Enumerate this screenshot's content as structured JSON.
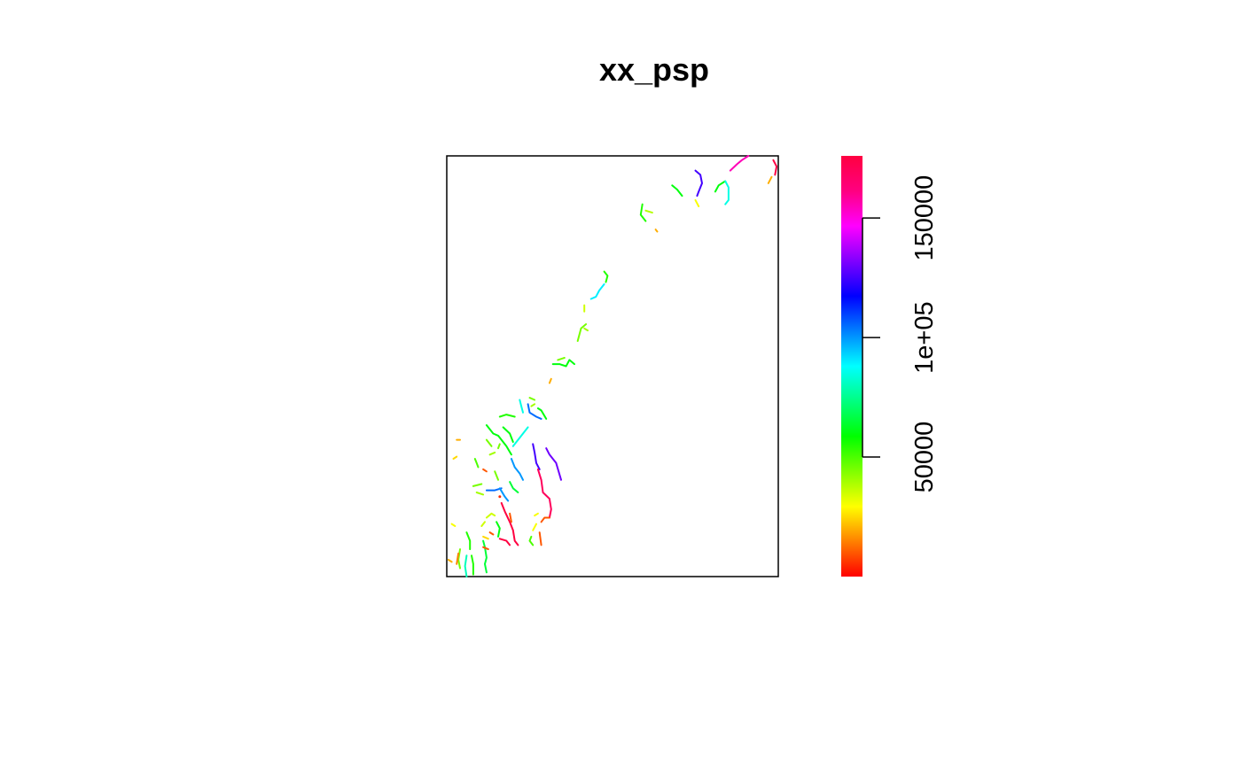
{
  "chart_data": {
    "type": "line",
    "title": "xx_psp",
    "xlabel": "",
    "ylabel": "",
    "axes_shown": false,
    "colorbar": {
      "orientation": "vertical",
      "placement": "right",
      "range": [
        0,
        176000
      ],
      "palette": [
        "#ff0000",
        "#ff8000",
        "#ffff00",
        "#80ff00",
        "#00ff00",
        "#00ff80",
        "#00ffff",
        "#0080ff",
        "#0000ff",
        "#8000ff",
        "#ff00ff",
        "#ff0080",
        "#ff0040"
      ],
      "ticks": [
        {
          "value": 50000,
          "label": "50000"
        },
        {
          "value": 100000,
          "label": "1e+05"
        },
        {
          "value": 150000,
          "label": "150000"
        }
      ]
    },
    "window": {
      "xlim": [
        0,
        100
      ],
      "ylim": [
        0,
        100
      ]
    },
    "segments_note": "",
    "segments": [
      {
        "value": 155000,
        "points": [
          [
            85.5,
            96.5
          ],
          [
            87.5,
            98
          ],
          [
            89,
            99
          ],
          [
            91,
            100
          ]
        ]
      },
      {
        "value": 175000,
        "points": [
          [
            98.5,
            99
          ],
          [
            99.5,
            97.5
          ],
          [
            99,
            95.5
          ]
        ]
      },
      {
        "value": 20000,
        "points": [
          [
            97,
            93.5
          ],
          [
            98,
            95
          ]
        ]
      },
      {
        "value": 125000,
        "points": [
          [
            75,
            96.5
          ],
          [
            76.5,
            95.5
          ],
          [
            77,
            93.5
          ],
          [
            76,
            91.5
          ],
          [
            75.5,
            90.5
          ]
        ]
      },
      {
        "value": 60000,
        "points": [
          [
            81,
            91.5
          ],
          [
            82,
            93
          ],
          [
            84,
            94
          ]
        ]
      },
      {
        "value": 85000,
        "points": [
          [
            84,
            94
          ],
          [
            85,
            92.5
          ],
          [
            85,
            89.5
          ],
          [
            84,
            88.5
          ]
        ]
      },
      {
        "value": 60000,
        "points": [
          [
            68,
            93
          ],
          [
            69.5,
            92
          ],
          [
            71,
            90.5
          ]
        ]
      },
      {
        "value": 30000,
        "points": [
          [
            75,
            89.5
          ],
          [
            76,
            88
          ]
        ]
      },
      {
        "value": 55000,
        "points": [
          [
            59,
            88.5
          ],
          [
            58.5,
            86
          ],
          [
            60,
            84.5
          ]
        ]
      },
      {
        "value": 38000,
        "points": [
          [
            60,
            87
          ],
          [
            62,
            86.5
          ]
        ]
      },
      {
        "value": 20000,
        "points": [
          [
            63,
            82.5
          ],
          [
            63.5,
            82
          ]
        ]
      },
      {
        "value": 55000,
        "points": [
          [
            48,
            70
          ],
          [
            48.5,
            71.5
          ],
          [
            47.5,
            72.5
          ]
        ]
      },
      {
        "value": 90000,
        "points": [
          [
            43.5,
            66
          ],
          [
            45,
            66.5
          ],
          [
            46,
            68
          ],
          [
            47.5,
            69.5
          ]
        ]
      },
      {
        "value": 35000,
        "points": [
          [
            41.5,
            63
          ],
          [
            41.5,
            64.5
          ]
        ]
      },
      {
        "value": 45000,
        "points": [
          [
            39.5,
            56
          ],
          [
            40.5,
            59
          ],
          [
            42,
            60
          ]
        ]
      },
      {
        "value": 40000,
        "points": [
          [
            41.5,
            59
          ],
          [
            42.5,
            58.5
          ]
        ]
      },
      {
        "value": 60000,
        "points": [
          [
            32,
            50.5
          ],
          [
            34,
            50.5
          ],
          [
            36,
            50
          ],
          [
            37,
            51.5
          ],
          [
            38.5,
            50.5
          ]
        ]
      },
      {
        "value": 45000,
        "points": [
          [
            33.5,
            51.5
          ],
          [
            35.5,
            52
          ]
        ]
      },
      {
        "value": 20000,
        "points": [
          [
            31.5,
            47
          ],
          [
            31,
            46
          ]
        ]
      },
      {
        "value": 45000,
        "points": [
          [
            25,
            42.5
          ],
          [
            26.5,
            42
          ]
        ]
      },
      {
        "value": 40000,
        "points": [
          [
            25.5,
            40.5
          ],
          [
            26.5,
            41
          ]
        ]
      },
      {
        "value": 105000,
        "points": [
          [
            24.5,
            41
          ],
          [
            25,
            39
          ],
          [
            27,
            38
          ],
          [
            28.5,
            37.5
          ]
        ]
      },
      {
        "value": 60000,
        "points": [
          [
            27.5,
            40
          ],
          [
            28.5,
            39.5
          ],
          [
            30,
            37.5
          ]
        ]
      },
      {
        "value": 85000,
        "points": [
          [
            22,
            42
          ],
          [
            22.5,
            40.5
          ],
          [
            23,
            39
          ]
        ]
      },
      {
        "value": 55000,
        "points": [
          [
            16,
            38
          ],
          [
            18,
            38.5
          ],
          [
            20.5,
            38
          ]
        ]
      },
      {
        "value": 60000,
        "points": [
          [
            17,
            35.5
          ],
          [
            19,
            34
          ],
          [
            20,
            32
          ]
        ]
      },
      {
        "value": 85000,
        "points": [
          [
            20,
            31
          ],
          [
            22,
            33
          ],
          [
            24.5,
            35.5
          ]
        ]
      },
      {
        "value": 45000,
        "points": [
          [
            12,
            32.5
          ],
          [
            13.5,
            31
          ]
        ]
      },
      {
        "value": 60000,
        "points": [
          [
            12,
            36
          ],
          [
            14,
            34
          ],
          [
            15.5,
            33.5
          ],
          [
            18,
            31
          ],
          [
            19.5,
            29
          ]
        ]
      },
      {
        "value": 45000,
        "points": [
          [
            16,
            31.5
          ],
          [
            15.5,
            30.5
          ]
        ]
      },
      {
        "value": 40000,
        "points": [
          [
            13,
            29
          ],
          [
            14.5,
            29.5
          ]
        ]
      },
      {
        "value": 50000,
        "points": [
          [
            8.5,
            28
          ],
          [
            9,
            27
          ],
          [
            9.5,
            26
          ]
        ]
      },
      {
        "value": 100000,
        "points": [
          [
            19.5,
            28
          ],
          [
            20.5,
            26
          ],
          [
            22,
            24.5
          ],
          [
            23,
            23
          ]
        ]
      },
      {
        "value": 125000,
        "points": [
          [
            26,
            31.5
          ],
          [
            26.5,
            29.5
          ],
          [
            27,
            27
          ],
          [
            28,
            25.5
          ]
        ]
      },
      {
        "value": 130000,
        "points": [
          [
            30,
            30.5
          ],
          [
            31,
            29
          ],
          [
            33,
            27
          ],
          [
            34.5,
            23
          ]
        ]
      },
      {
        "value": 170000,
        "points": [
          [
            27.5,
            25.5
          ],
          [
            28.5,
            23
          ],
          [
            29,
            20
          ],
          [
            31,
            18.5
          ],
          [
            31.5,
            16
          ],
          [
            31,
            14
          ]
        ]
      },
      {
        "value": 10000,
        "points": [
          [
            31,
            14
          ],
          [
            29.5,
            14
          ],
          [
            28.5,
            13
          ]
        ]
      },
      {
        "value": 30000,
        "points": [
          [
            27.5,
            15
          ],
          [
            26.5,
            14.5
          ]
        ]
      },
      {
        "value": 45000,
        "points": [
          [
            8,
            21.5
          ],
          [
            10.5,
            22
          ]
        ]
      },
      {
        "value": 40000,
        "points": [
          [
            9,
            20
          ],
          [
            11,
            19.5
          ]
        ]
      },
      {
        "value": 105000,
        "points": [
          [
            12,
            20.5
          ],
          [
            14.5,
            20.5
          ],
          [
            16.5,
            21
          ]
        ]
      },
      {
        "value": 100000,
        "points": [
          [
            16,
            21
          ],
          [
            17.5,
            19
          ],
          [
            18.5,
            18
          ]
        ]
      },
      {
        "value": 65000,
        "points": [
          [
            19,
            22.5
          ],
          [
            20,
            21
          ],
          [
            21.5,
            20
          ]
        ]
      },
      {
        "value": 45000,
        "points": [
          [
            14.5,
            25
          ],
          [
            15.5,
            23
          ]
        ]
      },
      {
        "value": 10000,
        "points": [
          [
            11,
            25.5
          ],
          [
            12,
            25
          ]
        ]
      },
      {
        "value": 5000,
        "points": [
          [
            16,
            19
          ]
        ]
      },
      {
        "value": 176000,
        "points": [
          [
            16.5,
            17.5
          ],
          [
            17.5,
            15.5
          ],
          [
            19,
            13
          ],
          [
            20,
            11
          ],
          [
            20.5,
            8.5
          ],
          [
            21.5,
            7.5
          ]
        ]
      },
      {
        "value": 10000,
        "points": [
          [
            19,
            15
          ],
          [
            19.5,
            13
          ]
        ]
      },
      {
        "value": 35000,
        "points": [
          [
            12,
            14
          ],
          [
            13.5,
            15
          ],
          [
            14.5,
            14.5
          ]
        ]
      },
      {
        "value": 35000,
        "points": [
          [
            10.5,
            12
          ],
          [
            11.5,
            13
          ]
        ]
      },
      {
        "value": 60000,
        "points": [
          [
            15,
            13
          ],
          [
            16,
            11.5
          ],
          [
            15.5,
            9.5
          ]
        ]
      },
      {
        "value": 10000,
        "points": [
          [
            13,
            10.5
          ],
          [
            14,
            10
          ]
        ]
      },
      {
        "value": 25000,
        "points": [
          [
            11,
            9.5
          ],
          [
            12.5,
            9
          ]
        ]
      },
      {
        "value": 176000,
        "points": [
          [
            16,
            9
          ],
          [
            18,
            8.5
          ],
          [
            19,
            7.5
          ]
        ]
      },
      {
        "value": 30000,
        "points": [
          [
            26,
            11
          ],
          [
            27,
            12.5
          ]
        ]
      },
      {
        "value": 50000,
        "points": [
          [
            25.5,
            9.5
          ],
          [
            25,
            8.5
          ],
          [
            26,
            7.5
          ]
        ]
      },
      {
        "value": 10000,
        "points": [
          [
            28,
            10.5
          ],
          [
            28.5,
            7.5
          ]
        ]
      },
      {
        "value": 55000,
        "points": [
          [
            6,
            10.5
          ],
          [
            7,
            8.5
          ],
          [
            7,
            6.5
          ]
        ]
      },
      {
        "value": 65000,
        "points": [
          [
            11,
            8.5
          ],
          [
            11.5,
            7
          ],
          [
            12,
            4.5
          ],
          [
            11.5,
            3
          ],
          [
            12,
            1
          ]
        ]
      },
      {
        "value": 10000,
        "points": [
          [
            11,
            7
          ],
          [
            12.5,
            6.5
          ]
        ]
      },
      {
        "value": 45000,
        "points": [
          [
            4,
            6.5
          ],
          [
            3.5,
            4
          ],
          [
            4,
            2
          ]
        ]
      },
      {
        "value": 80000,
        "points": [
          [
            6,
            5
          ],
          [
            5.5,
            2.5
          ],
          [
            6,
            0
          ]
        ]
      },
      {
        "value": 55000,
        "points": [
          [
            7.5,
            5
          ],
          [
            8,
            3
          ],
          [
            8,
            0.5
          ]
        ]
      },
      {
        "value": 30000,
        "points": [
          [
            1.5,
            12.5
          ],
          [
            2.5,
            12
          ]
        ]
      },
      {
        "value": 20000,
        "points": [
          [
            0.5,
            4
          ],
          [
            1.5,
            3.5
          ]
        ]
      },
      {
        "value": 15000,
        "points": [
          [
            3.5,
            5.5
          ],
          [
            3,
            3
          ]
        ]
      },
      {
        "value": 25000,
        "points": [
          [
            2,
            28
          ],
          [
            3,
            28.5
          ]
        ]
      },
      {
        "value": 20000,
        "points": [
          [
            3,
            32.5
          ],
          [
            4,
            32.5
          ]
        ]
      }
    ]
  }
}
